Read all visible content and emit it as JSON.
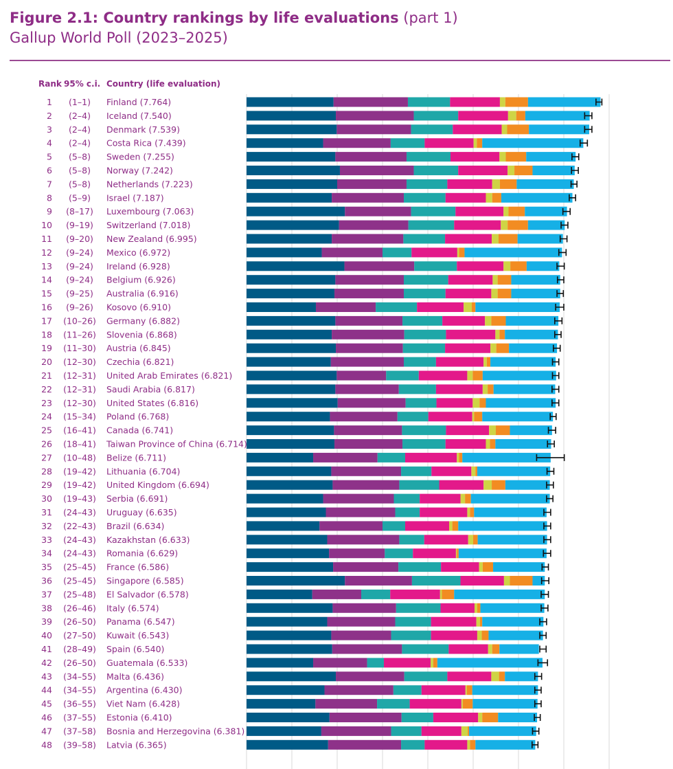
{
  "header": {
    "title": "Figure 2.1: Country rankings by life evaluations",
    "title_part": "(part 1)",
    "subtitle": "Gallup World Poll (2023–2025)",
    "col_rank": "Rank",
    "col_ci": "95% c.i.",
    "col_country": "Country (life evaluation)"
  },
  "colors": {
    "title": "#8e2c86",
    "segments": [
      "#005a86",
      "#8e3289",
      "#1fa7a8",
      "#e3198a",
      "#cfd445",
      "#f28c22",
      "#16b0e6"
    ],
    "errorbar": "#111111",
    "gridline": "#d8d8d8"
  },
  "chart_data": {
    "type": "bar",
    "stacked": true,
    "orientation": "horizontal",
    "xlim": [
      0,
      8
    ],
    "grid": true,
    "legend": "none",
    "rows": [
      {
        "rank": "1",
        "ci": "(1–1)",
        "label": "Finland (7.764)",
        "value": 7.764,
        "segments": [
          1.92,
          1.64,
          0.93,
          1.1,
          0.12,
          0.5,
          1.6
        ],
        "ci_low": 7.71,
        "ci_high": 7.84
      },
      {
        "rank": "2",
        "ci": "(2–4)",
        "label": "Iceland (7.540)",
        "value": 7.54,
        "segments": [
          1.97,
          1.72,
          0.98,
          1.1,
          0.18,
          0.2,
          1.42
        ],
        "ci_low": 7.46,
        "ci_high": 7.62
      },
      {
        "rank": "3",
        "ci": "(2–4)",
        "label": "Denmark (7.539)",
        "value": 7.539,
        "segments": [
          1.99,
          1.64,
          0.92,
          1.08,
          0.12,
          0.48,
          1.33
        ],
        "ci_low": 7.46,
        "ci_high": 7.62
      },
      {
        "rank": "4",
        "ci": "(2–4)",
        "label": "Costa Rica (7.439)",
        "value": 7.439,
        "segments": [
          1.69,
          1.49,
          0.75,
          1.08,
          0.07,
          0.12,
          2.23
        ],
        "ci_low": 7.36,
        "ci_high": 7.52
      },
      {
        "rank": "5",
        "ci": "(5–8)",
        "label": "Sweden (7.255)",
        "value": 7.255,
        "segments": [
          1.96,
          1.57,
          0.97,
          1.08,
          0.14,
          0.45,
          1.09
        ],
        "ci_low": 7.18,
        "ci_high": 7.33
      },
      {
        "rank": "6",
        "ci": "(5–8)",
        "label": "Norway (7.242)",
        "value": 7.242,
        "segments": [
          2.06,
          1.63,
          0.98,
          1.09,
          0.15,
          0.4,
          0.93
        ],
        "ci_low": 7.17,
        "ci_high": 7.32
      },
      {
        "rank": "7",
        "ci": "(5–8)",
        "label": "Netherlands (7.223)",
        "value": 7.223,
        "segments": [
          2.0,
          1.53,
          0.9,
          0.99,
          0.17,
          0.37,
          1.26
        ],
        "ci_low": 7.16,
        "ci_high": 7.29
      },
      {
        "rank": "8",
        "ci": "(5–9)",
        "label": "Israel (7.187)",
        "value": 7.187,
        "segments": [
          1.88,
          1.59,
          0.92,
          0.89,
          0.14,
          0.2,
          1.57
        ],
        "ci_low": 7.12,
        "ci_high": 7.26
      },
      {
        "rank": "9",
        "ci": "(8–17)",
        "label": "Luxembourg (7.063)",
        "value": 7.063,
        "segments": [
          2.17,
          1.46,
          0.98,
          1.06,
          0.11,
          0.36,
          0.93
        ],
        "ci_low": 6.98,
        "ci_high": 7.14
      },
      {
        "rank": "10",
        "ci": "(9–19)",
        "label": "Switzerland (7.018)",
        "value": 7.018,
        "segments": [
          2.04,
          1.53,
          1.01,
          1.03,
          0.15,
          0.45,
          0.81
        ],
        "ci_low": 6.94,
        "ci_high": 7.09
      },
      {
        "rank": "11",
        "ci": "(9–20)",
        "label": "New Zealand (6.995)",
        "value": 6.995,
        "segments": [
          1.88,
          1.58,
          0.92,
          1.03,
          0.15,
          0.42,
          1.0
        ],
        "ci_low": 6.92,
        "ci_high": 7.07
      },
      {
        "rank": "12",
        "ci": "(9–24)",
        "label": "Mexico (6.972)",
        "value": 6.972,
        "segments": [
          1.66,
          1.34,
          0.64,
          1.01,
          0.04,
          0.12,
          2.15
        ],
        "ci_low": 6.89,
        "ci_high": 7.05
      },
      {
        "rank": "13",
        "ci": "(9–24)",
        "label": "Ireland (6.928)",
        "value": 6.928,
        "segments": [
          2.16,
          1.54,
          0.94,
          1.03,
          0.15,
          0.36,
          0.72
        ],
        "ci_low": 6.85,
        "ci_high": 7.01
      },
      {
        "rank": "14",
        "ci": "(9–24)",
        "label": "Belgium (6.926)",
        "value": 6.926,
        "segments": [
          1.96,
          1.51,
          0.98,
          0.98,
          0.11,
          0.3,
          1.08
        ],
        "ci_low": 6.86,
        "ci_high": 7.0
      },
      {
        "rank": "15",
        "ci": "(9–25)",
        "label": "Australia (6.916)",
        "value": 6.916,
        "segments": [
          1.94,
          1.53,
          0.92,
          1.01,
          0.14,
          0.3,
          1.08
        ],
        "ci_low": 6.85,
        "ci_high": 6.99
      },
      {
        "rank": "16",
        "ci": "(9–26)",
        "label": "Kosovo (6.910)",
        "value": 6.91,
        "segments": [
          1.53,
          1.32,
          0.91,
          1.03,
          0.18,
          0.08,
          1.86
        ],
        "ci_low": 6.82,
        "ci_high": 7.0
      },
      {
        "rank": "17",
        "ci": "(10–26)",
        "label": "Germany (6.882)",
        "value": 6.882,
        "segments": [
          1.96,
          1.48,
          0.88,
          0.94,
          0.14,
          0.32,
          1.16
        ],
        "ci_low": 6.8,
        "ci_high": 6.96
      },
      {
        "rank": "18",
        "ci": "(11–26)",
        "label": "Slovenia (6.868)",
        "value": 6.868,
        "segments": [
          1.88,
          1.6,
          0.92,
          1.09,
          0.09,
          0.12,
          1.17
        ],
        "ci_low": 6.8,
        "ci_high": 6.94
      },
      {
        "rank": "19",
        "ci": "(11–30)",
        "label": "Austria (6.845)",
        "value": 6.845,
        "segments": [
          1.97,
          1.48,
          0.93,
          1.0,
          0.13,
          0.28,
          1.06
        ],
        "ci_low": 6.77,
        "ci_high": 6.92
      },
      {
        "rank": "20",
        "ci": "(12–30)",
        "label": "Czechia (6.821)",
        "value": 6.821,
        "segments": [
          1.86,
          1.61,
          0.71,
          1.05,
          0.07,
          0.08,
          1.44
        ],
        "ci_low": 6.75,
        "ci_high": 6.89
      },
      {
        "rank": "21",
        "ci": "(12–31)",
        "label": "United Arab Emirates (6.821)",
        "value": 6.821,
        "segments": [
          1.99,
          1.09,
          0.72,
          1.07,
          0.12,
          0.22,
          1.62
        ],
        "ci_low": 6.75,
        "ci_high": 6.89
      },
      {
        "rank": "22",
        "ci": "(12–31)",
        "label": "Saudi Arabia (6.817)",
        "value": 6.817,
        "segments": [
          1.96,
          1.4,
          0.82,
          1.03,
          0.11,
          0.13,
          1.36
        ],
        "ci_low": 6.74,
        "ci_high": 6.89
      },
      {
        "rank": "23",
        "ci": "(12–30)",
        "label": "United States (6.816)",
        "value": 6.816,
        "segments": [
          2.01,
          1.5,
          0.68,
          0.8,
          0.15,
          0.14,
          1.54
        ],
        "ci_low": 6.74,
        "ci_high": 6.89
      },
      {
        "rank": "24",
        "ci": "(15–34)",
        "label": "Poland (6.768)",
        "value": 6.768,
        "segments": [
          1.84,
          1.49,
          0.68,
          0.97,
          0.04,
          0.18,
          1.56
        ],
        "ci_low": 6.7,
        "ci_high": 6.83
      },
      {
        "rank": "25",
        "ci": "(16–41)",
        "label": "Canada (6.741)",
        "value": 6.741,
        "segments": [
          1.93,
          1.5,
          0.97,
          0.95,
          0.15,
          0.31,
          0.93
        ],
        "ci_low": 6.66,
        "ci_high": 6.82
      },
      {
        "rank": "26",
        "ci": "(18–41)",
        "label": "Taiwan Province of China (6.714)",
        "value": 6.714,
        "segments": [
          1.94,
          1.5,
          0.95,
          0.89,
          0.09,
          0.12,
          1.23
        ],
        "ci_low": 6.64,
        "ci_high": 6.79
      },
      {
        "rank": "27",
        "ci": "(10–48)",
        "label": "Belize (6.711)",
        "value": 6.711,
        "segments": [
          1.47,
          1.42,
          0.61,
          1.14,
          0.05,
          0.07,
          1.95
        ],
        "ci_low": 6.4,
        "ci_high": 7.01
      },
      {
        "rank": "28",
        "ci": "(19–42)",
        "label": "Lithuania (6.704)",
        "value": 6.704,
        "segments": [
          1.87,
          1.54,
          0.67,
          0.88,
          0.09,
          0.04,
          1.61
        ],
        "ci_low": 6.63,
        "ci_high": 6.78
      },
      {
        "rank": "29",
        "ci": "(19–42)",
        "label": "United Kingdom (6.694)",
        "value": 6.694,
        "segments": [
          1.9,
          1.47,
          0.88,
          0.98,
          0.18,
          0.3,
          0.98
        ],
        "ci_low": 6.62,
        "ci_high": 6.77
      },
      {
        "rank": "30",
        "ci": "(19–43)",
        "label": "Serbia (6.691)",
        "value": 6.691,
        "segments": [
          1.69,
          1.56,
          0.57,
          0.9,
          0.1,
          0.13,
          1.74
        ],
        "ci_low": 6.62,
        "ci_high": 6.76
      },
      {
        "rank": "31",
        "ci": "(24–43)",
        "label": "Uruguay (6.635)",
        "value": 6.635,
        "segments": [
          1.75,
          1.53,
          0.54,
          1.05,
          0.06,
          0.09,
          1.6
        ],
        "ci_low": 6.56,
        "ci_high": 6.71
      },
      {
        "rank": "32",
        "ci": "(22–43)",
        "label": "Brazil (6.634)",
        "value": 6.634,
        "segments": [
          1.61,
          1.39,
          0.5,
          0.97,
          0.07,
          0.13,
          1.96
        ],
        "ci_low": 6.56,
        "ci_high": 6.71
      },
      {
        "rank": "33",
        "ci": "(24–43)",
        "label": "Kazakhstan (6.633)",
        "value": 6.633,
        "segments": [
          1.78,
          1.59,
          0.55,
          0.97,
          0.11,
          0.1,
          1.53
        ],
        "ci_low": 6.56,
        "ci_high": 6.71
      },
      {
        "rank": "34",
        "ci": "(24–43)",
        "label": "Romania (6.629)",
        "value": 6.629,
        "segments": [
          1.82,
          1.23,
          0.62,
          0.95,
          0.02,
          0.04,
          1.94
        ],
        "ci_low": 6.55,
        "ci_high": 6.71
      },
      {
        "rank": "35",
        "ci": "(25–45)",
        "label": "France (6.586)",
        "value": 6.586,
        "segments": [
          1.91,
          1.44,
          0.94,
          0.84,
          0.08,
          0.23,
          1.14
        ],
        "ci_low": 6.52,
        "ci_high": 6.66
      },
      {
        "rank": "36",
        "ci": "(25–45)",
        "label": "Singapore (6.585)",
        "value": 6.585,
        "segments": [
          2.17,
          1.48,
          1.07,
          0.96,
          0.13,
          0.5,
          0.27
        ],
        "ci_low": 6.51,
        "ci_high": 6.67
      },
      {
        "rank": "37",
        "ci": "(25–48)",
        "label": "El Salvador (6.578)",
        "value": 6.578,
        "segments": [
          1.45,
          1.08,
          0.64,
          1.1,
          0.04,
          0.27,
          2.0
        ],
        "ci_low": 6.5,
        "ci_high": 6.66
      },
      {
        "rank": "38",
        "ci": "(26–46)",
        "label": "Italy (6.574)",
        "value": 6.574,
        "segments": [
          1.9,
          1.4,
          0.98,
          0.75,
          0.06,
          0.07,
          1.41
        ],
        "ci_low": 6.5,
        "ci_high": 6.65
      },
      {
        "rank": "39",
        "ci": "(26–50)",
        "label": "Panama (6.547)",
        "value": 6.547,
        "segments": [
          1.78,
          1.5,
          0.79,
          1.0,
          0.08,
          0.05,
          1.35
        ],
        "ci_low": 6.47,
        "ci_high": 6.62
      },
      {
        "rank": "40",
        "ci": "(27–50)",
        "label": "Kuwait (6.543)",
        "value": 6.543,
        "segments": [
          1.87,
          1.32,
          0.88,
          1.02,
          0.1,
          0.15,
          1.2
        ],
        "ci_low": 6.47,
        "ci_high": 6.61
      },
      {
        "rank": "41",
        "ci": "(28–49)",
        "label": "Spain (6.540)",
        "value": 6.54,
        "segments": [
          1.89,
          1.54,
          1.03,
          0.87,
          0.09,
          0.16,
          0.87
        ],
        "ci_low": 6.47,
        "ci_high": 6.61
      },
      {
        "rank": "42",
        "ci": "(26–50)",
        "label": "Guatemala (6.533)",
        "value": 6.533,
        "segments": [
          1.47,
          1.19,
          0.37,
          1.03,
          0.06,
          0.09,
          2.32
        ],
        "ci_low": 6.43,
        "ci_high": 6.64
      },
      {
        "rank": "43",
        "ci": "(34–55)",
        "label": "Malta (6.436)",
        "value": 6.436,
        "segments": [
          1.97,
          1.51,
          0.95,
          0.97,
          0.17,
          0.13,
          0.73
        ],
        "ci_low": 6.36,
        "ci_high": 6.51
      },
      {
        "rank": "44",
        "ci": "(34–55)",
        "label": "Argentina (6.430)",
        "value": 6.43,
        "segments": [
          1.72,
          1.52,
          0.62,
          0.97,
          0.03,
          0.12,
          1.45
        ],
        "ci_low": 6.36,
        "ci_high": 6.5
      },
      {
        "rank": "45",
        "ci": "(36–55)",
        "label": "Viet Nam (6.428)",
        "value": 6.428,
        "segments": [
          1.52,
          1.36,
          0.72,
          1.14,
          0.03,
          0.22,
          1.43
        ],
        "ci_low": 6.36,
        "ci_high": 6.5
      },
      {
        "rank": "46",
        "ci": "(37–55)",
        "label": "Estonia (6.410)",
        "value": 6.41,
        "segments": [
          1.83,
          1.59,
          0.7,
          0.99,
          0.09,
          0.35,
          0.86
        ],
        "ci_low": 6.35,
        "ci_high": 6.48
      },
      {
        "rank": "47",
        "ci": "(37–58)",
        "label": "Bosnia and Herzegovina (6.381)",
        "value": 6.381,
        "segments": [
          1.65,
          1.54,
          0.67,
          0.88,
          0.14,
          0.03,
          1.48
        ],
        "ci_low": 6.31,
        "ci_high": 6.45
      },
      {
        "rank": "48",
        "ci": "(39–58)",
        "label": "Latvia (6.365)",
        "value": 6.365,
        "segments": [
          1.8,
          1.61,
          0.52,
          0.94,
          0.06,
          0.12,
          1.32
        ],
        "ci_low": 6.3,
        "ci_high": 6.43
      }
    ]
  }
}
